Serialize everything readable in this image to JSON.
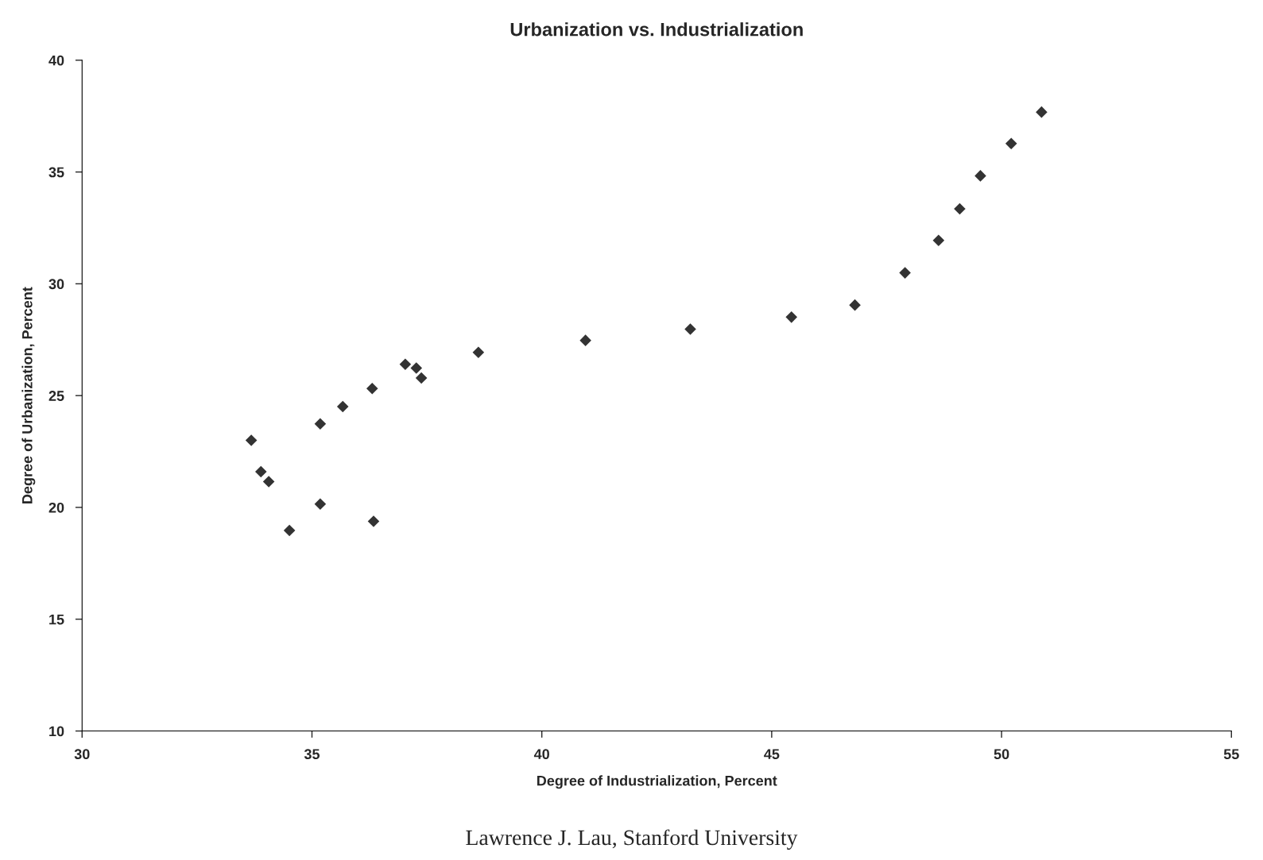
{
  "chart_data": {
    "type": "scatter",
    "title": "Urbanization vs. Industrialization",
    "xlabel": "Degree of Industrialization, Percent",
    "ylabel": "Degree of Urbanization, Percent",
    "x": [
      33.68,
      33.89,
      34.06,
      34.51,
      35.18,
      35.18,
      35.67,
      36.31,
      36.34,
      37.03,
      37.27,
      37.38,
      38.62,
      40.95,
      43.23,
      45.43,
      46.81,
      47.9,
      48.63,
      49.09,
      49.54,
      50.21,
      50.87
    ],
    "series": [
      {
        "color": "#333333",
        "values": [
          23.0,
          21.6,
          21.15,
          18.97,
          20.15,
          23.74,
          24.51,
          25.32,
          19.38,
          26.4,
          26.23,
          25.79,
          26.93,
          27.47,
          27.97,
          28.51,
          29.05,
          30.49,
          31.94,
          33.35,
          34.83,
          36.27,
          37.68
        ]
      }
    ],
    "xlim": [
      30,
      55
    ],
    "xticks": [
      30,
      35,
      40,
      45,
      50,
      55
    ],
    "ylim": [
      10,
      40
    ],
    "yticks": [
      10,
      15,
      20,
      25,
      30,
      35,
      40
    ],
    "grid": false,
    "marker": "diamond",
    "annotations": [
      "Lawrence J. Lau, Stanford University"
    ]
  }
}
